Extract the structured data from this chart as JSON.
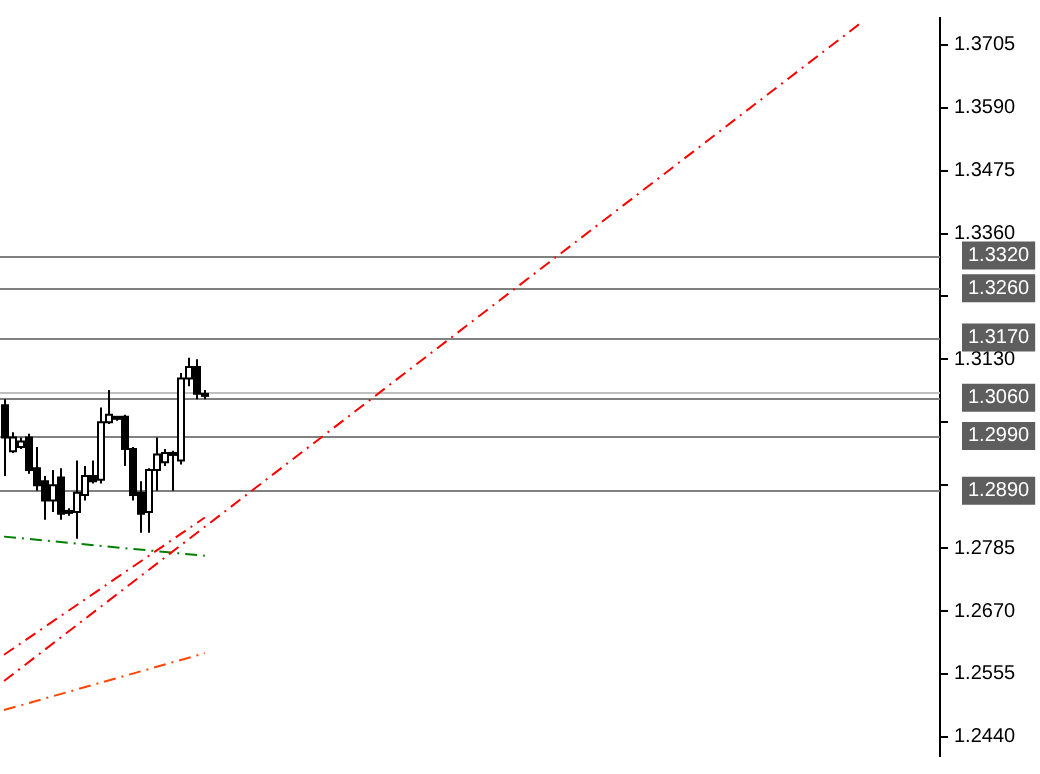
{
  "chart_data": {
    "type": "candlestick",
    "categories": [
      null,
      null,
      null,
      null,
      null,
      null,
      null,
      null,
      null,
      null,
      null,
      null,
      null,
      null,
      null,
      null,
      null,
      null,
      null,
      null,
      null,
      null,
      null,
      null,
      null,
      null,
      null,
      null,
      null,
      null,
      null,
      null,
      null,
      null,
      null,
      null,
      null,
      null,
      null,
      null,
      null,
      null,
      null,
      null,
      null,
      null,
      null,
      null,
      null,
      null,
      null,
      null,
      null,
      null,
      null,
      null,
      null,
      null,
      null,
      null,
      null,
      null,
      null,
      null,
      null,
      null,
      null,
      null,
      null,
      null,
      null,
      null,
      null,
      null,
      null,
      null,
      null,
      null,
      null,
      null,
      null,
      null,
      null,
      null,
      null,
      null,
      null,
      null,
      null,
      null,
      null,
      null,
      null,
      null,
      null,
      null,
      null,
      null,
      null,
      null,
      null,
      null,
      null,
      null,
      null,
      null,
      null,
      null,
      null,
      null,
      null,
      null,
      null,
      null,
      null,
      null,
      null
    ],
    "ohlc": [
      [
        1.3046,
        1.3057,
        1.2917,
        1.2987
      ],
      [
        1.2962,
        1.2997,
        1.2959,
        1.2987
      ],
      [
        1.297,
        1.2987,
        1.2966,
        1.298
      ],
      [
        1.2987,
        1.2994,
        1.2921,
        1.2928
      ],
      [
        1.2931,
        1.297,
        1.289,
        1.29
      ],
      [
        1.2907,
        1.2917,
        1.2837,
        1.2872
      ],
      [
        1.2872,
        1.2928,
        1.2851,
        1.29
      ],
      [
        1.2914,
        1.2931,
        1.2837,
        1.2848
      ],
      [
        1.2851,
        1.2858,
        1.2844,
        1.2853
      ],
      [
        1.2851,
        1.2945,
        1.2802,
        1.2886
      ],
      [
        1.2882,
        1.2935,
        1.2872,
        1.2917
      ],
      [
        1.2917,
        1.2945,
        1.2903,
        1.2907
      ],
      [
        1.291,
        1.3042,
        1.2903,
        1.3015
      ],
      [
        1.3015,
        1.3074,
        1.3012,
        1.3029
      ],
      [
        1.3025,
        1.3025,
        1.3018,
        1.3022
      ],
      [
        1.3025,
        1.3029,
        1.2935,
        1.2966
      ],
      [
        1.2966,
        1.297,
        1.2872,
        1.2882
      ],
      [
        1.2886,
        1.2907,
        1.2813,
        1.2848
      ],
      [
        1.2851,
        1.2931,
        1.2813,
        1.2928
      ],
      [
        1.2928,
        1.2987,
        1.289,
        1.2956
      ],
      [
        1.2942,
        1.2966,
        1.2935,
        1.2959
      ],
      [
        1.2956,
        1.2963,
        1.289,
        1.2959
      ],
      [
        1.2945,
        1.3105,
        1.2938,
        1.3095
      ],
      [
        1.3095,
        1.3133,
        1.3081,
        1.3116
      ],
      [
        1.3116,
        1.313,
        1.3057,
        1.3067
      ],
      [
        1.3067,
        1.3074,
        1.3057,
        1.3064
      ],
      null,
      null,
      null,
      null,
      null,
      null,
      null,
      null,
      null,
      null,
      null,
      null,
      null,
      null,
      null,
      null,
      null,
      null,
      null,
      null,
      null,
      null,
      null,
      null,
      null,
      null,
      null,
      null,
      null,
      null,
      null,
      null,
      null,
      null,
      null,
      null,
      null,
      null,
      null,
      null,
      null,
      null,
      null,
      null,
      null,
      null,
      null,
      null,
      null,
      null,
      null,
      null,
      null,
      null,
      null,
      null,
      null,
      null,
      null,
      null,
      null,
      null,
      null,
      null,
      null,
      null,
      null,
      null,
      null,
      null,
      null,
      null,
      null,
      null,
      null,
      null,
      null,
      null,
      null,
      null,
      null,
      null,
      null,
      null,
      null,
      null,
      null,
      null,
      null,
      null,
      null
    ],
    "series": [
      {
        "type": "line",
        "color": "#ff0000",
        "line_style": "dashed",
        "values": [
          1.2542,
          null,
          null,
          null,
          null,
          null,
          null,
          null,
          null,
          null,
          null,
          null,
          null,
          null,
          null,
          null,
          null,
          null,
          null,
          null,
          null,
          null,
          null,
          null,
          null,
          null,
          null,
          null,
          null,
          null,
          null,
          null,
          null,
          null,
          null,
          null,
          null,
          null,
          null,
          null,
          null,
          null,
          null,
          null,
          null,
          null,
          null,
          null,
          null,
          null,
          null,
          null,
          null,
          null,
          null,
          null,
          null,
          null,
          null,
          null,
          null,
          null,
          null,
          null,
          null,
          null,
          null,
          null,
          null,
          null,
          null,
          null,
          null,
          null,
          null,
          null,
          null,
          null,
          null,
          null,
          null,
          null,
          null,
          null,
          null,
          null,
          null,
          null,
          null,
          null,
          null,
          null,
          null,
          null,
          null,
          null,
          null,
          null,
          null,
          null,
          null,
          null,
          null,
          null,
          null,
          null,
          null,
          1.3749,
          null,
          null,
          null,
          null,
          null,
          null,
          null,
          null,
          null
        ]
      },
      {
        "type": "line",
        "color": "#ff0000",
        "line_style": "dashed",
        "values": [
          1.259,
          null,
          null,
          null,
          null,
          null,
          null,
          null,
          null,
          null,
          null,
          null,
          null,
          null,
          null,
          null,
          null,
          null,
          null,
          null,
          null,
          null,
          null,
          null,
          null,
          1.2841,
          null,
          null,
          null,
          null,
          null,
          null,
          null,
          null,
          null,
          null,
          null,
          null,
          null,
          null,
          null,
          null,
          null,
          null,
          null,
          null,
          null,
          null,
          null,
          null,
          null,
          null,
          null,
          null,
          null,
          null,
          null,
          null,
          null,
          null,
          null,
          null,
          null,
          null,
          null,
          null,
          null,
          null,
          null,
          null,
          null,
          null,
          null,
          null,
          null,
          null,
          null,
          null,
          null,
          null,
          null,
          null,
          null,
          null,
          null,
          null,
          null,
          null,
          null,
          null,
          null,
          null,
          null,
          null,
          null,
          null,
          null,
          null,
          null,
          null,
          null,
          null,
          null,
          null,
          null,
          null,
          null,
          null,
          null,
          null,
          null,
          null,
          null,
          null,
          null,
          null,
          null
        ]
      },
      {
        "type": "line",
        "color": "#ff4500",
        "line_style": "dashed",
        "values": [
          1.2489,
          null,
          null,
          null,
          null,
          null,
          null,
          null,
          null,
          null,
          null,
          null,
          null,
          null,
          null,
          null,
          null,
          null,
          null,
          null,
          null,
          null,
          null,
          null,
          null,
          1.2593,
          null,
          null,
          null,
          null,
          null,
          null,
          null,
          null,
          null,
          null,
          null,
          null,
          null,
          null,
          null,
          null,
          null,
          null,
          null,
          null,
          null,
          null,
          null,
          null,
          null,
          null,
          null,
          null,
          null,
          null,
          null,
          null,
          null,
          null,
          null,
          null,
          null,
          null,
          null,
          null,
          null,
          null,
          null,
          null,
          null,
          null,
          null,
          null,
          null,
          null,
          null,
          null,
          null,
          null,
          null,
          null,
          null,
          null,
          null,
          null,
          null,
          null,
          null,
          null,
          null,
          null,
          null,
          null,
          null,
          null,
          null,
          null,
          null,
          null,
          null,
          null,
          null,
          null,
          null,
          null,
          null,
          null,
          null,
          null,
          null,
          null,
          null,
          null,
          null,
          null,
          null
        ]
      },
      {
        "type": "line",
        "color": "#008000",
        "line_style": "dashed",
        "values": [
          1.2806,
          null,
          null,
          null,
          null,
          null,
          null,
          null,
          null,
          null,
          null,
          null,
          null,
          null,
          null,
          null,
          null,
          null,
          null,
          null,
          null,
          null,
          null,
          null,
          null,
          1.2771,
          null,
          null,
          null,
          null,
          null,
          null,
          null,
          null,
          null,
          null,
          null,
          null,
          null,
          null,
          null,
          null,
          null,
          null,
          null,
          null,
          null,
          null,
          null,
          null,
          null,
          null,
          null,
          null,
          null,
          null,
          null,
          null,
          null,
          null,
          null,
          null,
          null,
          null,
          null,
          null,
          null,
          null,
          null,
          null,
          null,
          null,
          null,
          null,
          null,
          null,
          null,
          null,
          null,
          null,
          null,
          null,
          null,
          null,
          null,
          null,
          null,
          null,
          null,
          null,
          null,
          null,
          null,
          null,
          null,
          null,
          null,
          null,
          null,
          null,
          null,
          null,
          null,
          null,
          null,
          null,
          null,
          null,
          null,
          null,
          null,
          null,
          null,
          null,
          null,
          null,
          null
        ]
      }
    ],
    "ylim": [
      1.2405,
      1.3754
    ],
    "yticks": [
      1.3705,
      {
        "value": 1.359,
        "label": "1.3590"
      },
      1.3475,
      {
        "value": 1.336,
        "label": "1.3360"
      },
      {
        "value": 1.3245,
        "label": null
      },
      {
        "value": 1.313,
        "label": "1.3130"
      },
      {
        "value": 1.3015,
        "label": null
      },
      {
        "value": 1.29,
        "label": null
      },
      1.2785,
      {
        "value": 1.267,
        "label": "1.2670"
      },
      1.2555,
      {
        "value": 1.244,
        "label": "1.2440"
      }
    ],
    "tick_labels": "y",
    "ref_lines": [
      {
        "axis": "y",
        "value": 1.332,
        "label": "1.3320",
        "color": "#808080"
      },
      {
        "axis": "y",
        "value": 1.326,
        "label": "1.3260",
        "color": "#808080"
      },
      {
        "axis": "y",
        "value": 1.317,
        "label": "1.3170",
        "color": "#808080"
      },
      {
        "axis": "y",
        "value": 1.3071,
        "color": "#c0c0c0"
      },
      {
        "axis": "y",
        "value": 1.306,
        "label": "1.3060",
        "color": "#808080"
      },
      {
        "axis": "y",
        "value": 1.299,
        "label": "1.2990",
        "color": "#808080"
      },
      {
        "axis": "y",
        "value": 1.289,
        "label": "1.2890",
        "color": "#808080"
      }
    ]
  }
}
